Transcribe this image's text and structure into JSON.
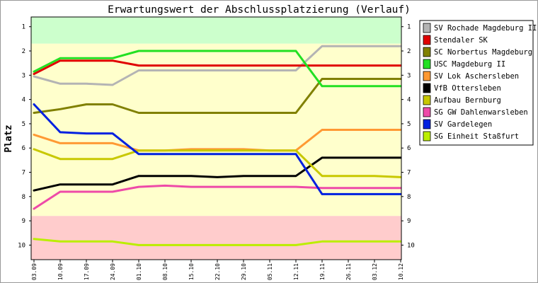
{
  "chart_data": {
    "type": "line",
    "title": "Erwartungswert der Abschlussplatzierung (Verlauf)",
    "ylabel": "Platz",
    "xlabel": "",
    "y_inverted": true,
    "ylim": [
      0.6,
      10.6
    ],
    "grid": false,
    "legend_position": "right",
    "categories": [
      "03.09",
      "10.09",
      "17.09",
      "24.09",
      "01.10",
      "08.10",
      "15.10",
      "22.10",
      "29.10",
      "05.11",
      "12.11",
      "19.11",
      "26.11",
      "03.12",
      "10.12"
    ],
    "y_ticks": [
      1,
      2,
      3,
      4,
      5,
      6,
      7,
      8,
      9,
      10
    ],
    "bands": [
      {
        "from": 0.6,
        "to": 1.7,
        "color": "#ccffcc"
      },
      {
        "from": 1.7,
        "to": 8.8,
        "color": "#ffffcc"
      },
      {
        "from": 8.8,
        "to": 10.6,
        "color": "#ffcccc"
      }
    ],
    "series": [
      {
        "name": "SV Rochade Magdeburg II",
        "color": "#b4b4b4",
        "values": [
          3.05,
          3.35,
          3.35,
          3.4,
          2.8,
          2.8,
          2.8,
          2.8,
          2.8,
          2.8,
          2.8,
          1.8,
          1.8,
          1.8,
          1.8
        ]
      },
      {
        "name": "Stendaler SK",
        "color": "#e00000",
        "values": [
          2.95,
          2.4,
          2.4,
          2.4,
          2.6,
          2.6,
          2.6,
          2.6,
          2.6,
          2.6,
          2.6,
          2.6,
          2.6,
          2.6,
          2.6
        ]
      },
      {
        "name": "SC Norbertus Magdeburg",
        "color": "#808000",
        "values": [
          4.55,
          4.4,
          4.2,
          4.2,
          4.55,
          4.55,
          4.55,
          4.55,
          4.55,
          4.55,
          4.55,
          3.15,
          3.15,
          3.15,
          3.15
        ]
      },
      {
        "name": "USC Magdeburg II",
        "color": "#22e022",
        "values": [
          2.85,
          2.3,
          2.3,
          2.3,
          2.0,
          2.0,
          2.0,
          2.0,
          2.0,
          2.0,
          2.0,
          3.45,
          3.45,
          3.45,
          3.45
        ]
      },
      {
        "name": "SV Lok Aschersleben",
        "color": "#ff9933",
        "values": [
          5.45,
          5.8,
          5.8,
          5.8,
          6.1,
          6.1,
          6.05,
          6.05,
          6.05,
          6.1,
          6.1,
          5.25,
          5.25,
          5.25,
          5.25
        ]
      },
      {
        "name": "VfB Ottersleben",
        "color": "#000000",
        "values": [
          7.75,
          7.5,
          7.5,
          7.5,
          7.15,
          7.15,
          7.15,
          7.2,
          7.15,
          7.15,
          7.15,
          6.4,
          6.4,
          6.4,
          6.4
        ]
      },
      {
        "name": "Aufbau Bernburg",
        "color": "#c8c800",
        "values": [
          6.05,
          6.45,
          6.45,
          6.45,
          6.1,
          6.1,
          6.1,
          6.1,
          6.1,
          6.1,
          6.1,
          7.15,
          7.15,
          7.15,
          7.2
        ]
      },
      {
        "name": "SG GW Dahlenwarsleben",
        "color": "#ee4aa8",
        "values": [
          8.5,
          7.8,
          7.8,
          7.8,
          7.6,
          7.55,
          7.6,
          7.6,
          7.6,
          7.6,
          7.6,
          7.65,
          7.65,
          7.65,
          7.65
        ]
      },
      {
        "name": "SV Gardelegen",
        "color": "#0020e0",
        "values": [
          4.2,
          5.35,
          5.4,
          5.4,
          6.25,
          6.25,
          6.25,
          6.25,
          6.25,
          6.25,
          6.25,
          7.9,
          7.9,
          7.9,
          7.9
        ]
      },
      {
        "name": "SG Einheit Staßfurt",
        "color": "#bbee00",
        "values": [
          9.75,
          9.85,
          9.85,
          9.85,
          10.0,
          10.0,
          10.0,
          10.0,
          10.0,
          10.0,
          10.0,
          9.85,
          9.85,
          9.85,
          9.85
        ]
      }
    ]
  }
}
